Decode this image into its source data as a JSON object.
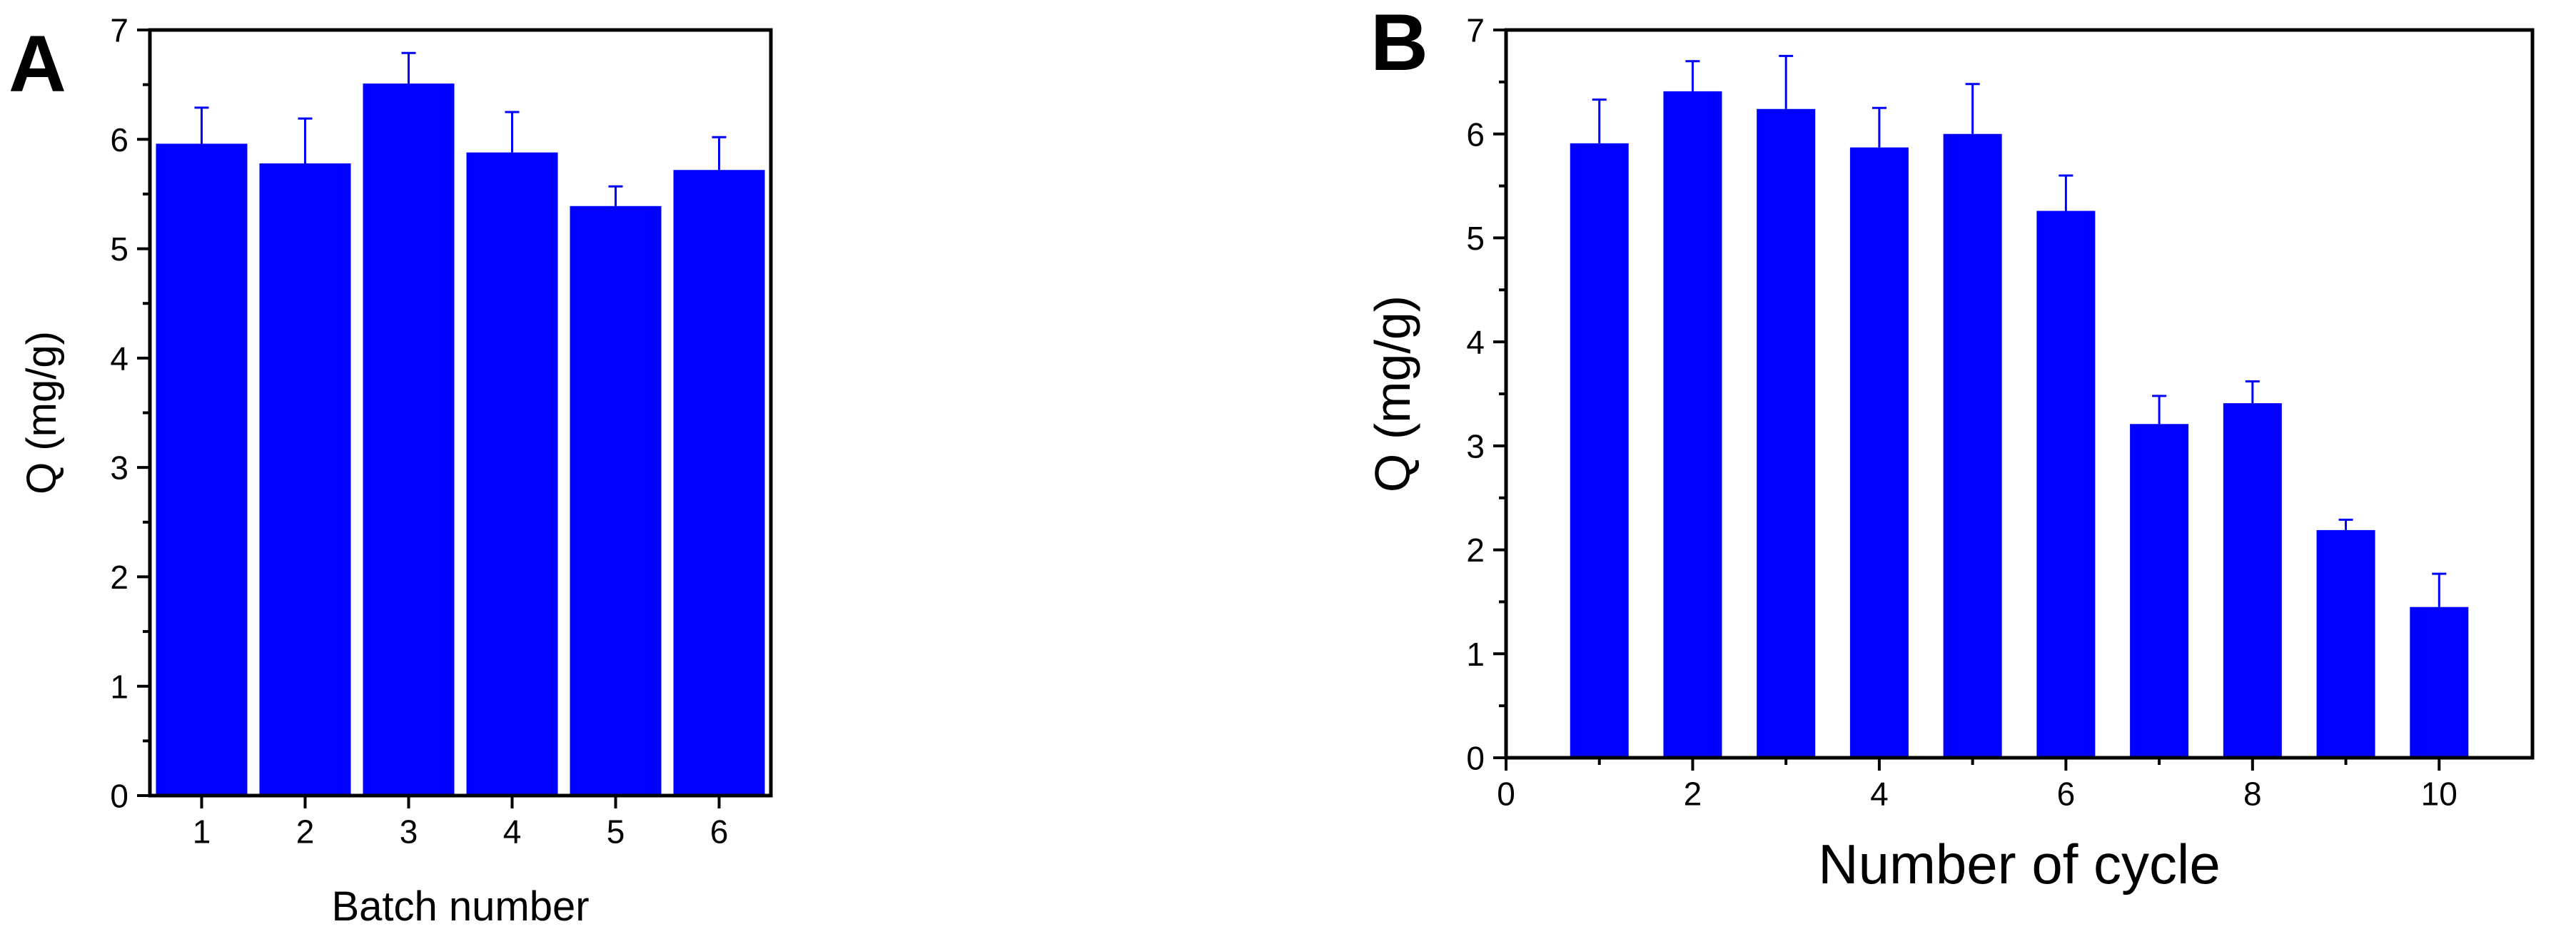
{
  "colors": {
    "bar": "#0000ff",
    "axis": "#000000",
    "background": "#ffffff"
  },
  "chart_data": [
    {
      "type": "bar",
      "panel_label": "A",
      "title": "",
      "xlabel": "Batch number",
      "ylabel": "Q (mg/g)",
      "categories": [
        "1",
        "2",
        "3",
        "4",
        "5",
        "6"
      ],
      "x": [
        1,
        2,
        3,
        4,
        5,
        6
      ],
      "values": [
        5.96,
        5.78,
        6.51,
        5.88,
        5.39,
        5.72
      ],
      "errors": [
        0.33,
        0.41,
        0.28,
        0.37,
        0.18,
        0.3
      ],
      "xlim": [
        0.5,
        6.5
      ],
      "ylim": [
        0,
        7
      ],
      "xticks": [
        "1",
        "2",
        "3",
        "4",
        "5",
        "6"
      ],
      "yticks": [
        "0",
        "1",
        "2",
        "3",
        "4",
        "5",
        "6",
        "7"
      ],
      "grid": false,
      "legend": "none"
    },
    {
      "type": "bar",
      "panel_label": "B",
      "title": "",
      "xlabel": "Number of cycle",
      "ylabel": "Q (mg/g)",
      "categories": [
        "1",
        "2",
        "3",
        "4",
        "5",
        "6",
        "7",
        "8",
        "9",
        "10"
      ],
      "x": [
        1,
        2,
        3,
        4,
        5,
        6,
        7,
        8,
        9,
        10
      ],
      "values": [
        5.91,
        6.41,
        6.24,
        5.87,
        6.0,
        5.26,
        3.21,
        3.41,
        2.19,
        1.45
      ],
      "errors": [
        0.42,
        0.29,
        0.51,
        0.38,
        0.48,
        0.34,
        0.27,
        0.21,
        0.1,
        0.32
      ],
      "xlim": [
        0,
        11
      ],
      "ylim": [
        0,
        7
      ],
      "xticks": [
        "0",
        "2",
        "4",
        "6",
        "8",
        "10"
      ],
      "yticks": [
        "0",
        "1",
        "2",
        "3",
        "4",
        "5",
        "6",
        "7"
      ],
      "grid": false,
      "legend": "none"
    }
  ]
}
